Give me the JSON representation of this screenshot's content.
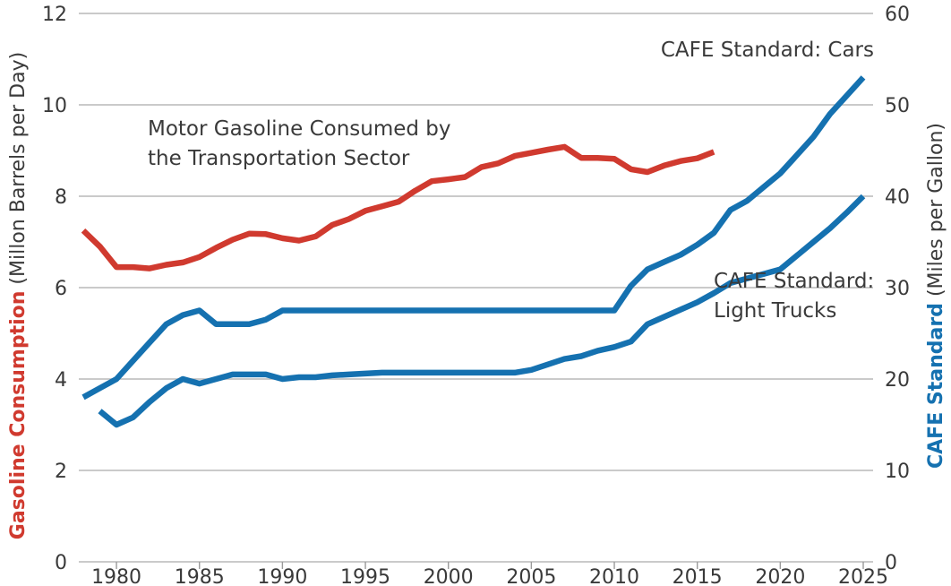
{
  "colors": {
    "gasoline": "#d03a2f",
    "cafe": "#1571b0",
    "text": "#3a3a3a",
    "grid": "#b9b9b9"
  },
  "y_axis_left": {
    "title_bold": "Gasoline Consumption",
    "title_rest": " (Millon Barrels per Day)",
    "ticks": [
      "0",
      "2",
      "4",
      "6",
      "8",
      "10",
      "12"
    ]
  },
  "y_axis_right": {
    "title_bold": "CAFE Standard",
    "title_rest": " (Miles per Gallon)",
    "ticks": [
      "0",
      "10",
      "20",
      "30",
      "40",
      "50",
      "60"
    ]
  },
  "x_axis": {
    "ticks": [
      "1980",
      "1985",
      "1990",
      "1995",
      "2000",
      "2005",
      "2010",
      "2015",
      "2020",
      "2025"
    ]
  },
  "annotations": {
    "gasoline_line1": "Motor Gasoline Consumed by",
    "gasoline_line2": "the Transportation Sector",
    "cars": "CAFE Standard: Cars",
    "trucks_line1": "CAFE Standard:",
    "trucks_line2": "Light Trucks"
  },
  "chart_data": {
    "type": "line",
    "x_range": [
      1978,
      2025
    ],
    "ylim_left": [
      0,
      12
    ],
    "ylim_right": [
      0,
      60
    ],
    "grid": true,
    "series": [
      {
        "name": "Motor Gasoline Consumed by the Transportation Sector",
        "axis": "left",
        "color": "#d03a2f",
        "x": [
          1978,
          1979,
          1980,
          1981,
          1982,
          1983,
          1984,
          1985,
          1986,
          1987,
          1988,
          1989,
          1990,
          1991,
          1992,
          1993,
          1994,
          1995,
          1996,
          1997,
          1998,
          1999,
          2000,
          2001,
          2002,
          2003,
          2004,
          2005,
          2006,
          2007,
          2008,
          2009,
          2010,
          2011,
          2012,
          2013,
          2014,
          2015,
          2016
        ],
        "y": [
          7.25,
          6.9,
          6.45,
          6.45,
          6.42,
          6.5,
          6.55,
          6.67,
          6.87,
          7.05,
          7.18,
          7.17,
          7.08,
          7.03,
          7.12,
          7.37,
          7.5,
          7.68,
          7.78,
          7.88,
          8.12,
          8.33,
          8.37,
          8.42,
          8.64,
          8.72,
          8.88,
          8.95,
          9.02,
          9.08,
          8.84,
          8.84,
          8.82,
          8.59,
          8.53,
          8.67,
          8.77,
          8.83,
          8.97
        ]
      },
      {
        "name": "CAFE Standard: Cars",
        "axis": "right",
        "color": "#1571b0",
        "x": [
          1978,
          1979,
          1980,
          1981,
          1982,
          1983,
          1984,
          1985,
          1986,
          1987,
          1988,
          1989,
          1990,
          2010,
          2011,
          2012,
          2013,
          2014,
          2015,
          2016,
          2017,
          2018,
          2019,
          2020,
          2021,
          2022,
          2023,
          2024,
          2025
        ],
        "y": [
          18,
          19,
          20,
          22,
          24,
          26,
          27,
          27.5,
          26,
          26,
          26,
          26.5,
          27.5,
          27.5,
          30.2,
          32,
          32.8,
          33.6,
          34.7,
          36,
          38.5,
          39.5,
          41,
          42.5,
          44.5,
          46.5,
          49,
          51,
          53
        ]
      },
      {
        "name": "CAFE Standard: Light Trucks",
        "axis": "right",
        "color": "#1571b0",
        "x": [
          1979,
          1980,
          1981,
          1982,
          1983,
          1984,
          1985,
          1986,
          1987,
          1988,
          1989,
          1990,
          1991,
          1992,
          1993,
          1994,
          1995,
          1996,
          1997,
          1998,
          1999,
          2000,
          2001,
          2002,
          2003,
          2004,
          2005,
          2006,
          2007,
          2008,
          2009,
          2010,
          2011,
          2012,
          2013,
          2014,
          2015,
          2016,
          2017,
          2018,
          2019,
          2020,
          2021,
          2022,
          2023,
          2024,
          2025
        ],
        "y": [
          16.5,
          15,
          15.8,
          17.5,
          19,
          20,
          19.5,
          20,
          20.5,
          20.5,
          20.5,
          20,
          20.2,
          20.2,
          20.4,
          20.5,
          20.6,
          20.7,
          20.7,
          20.7,
          20.7,
          20.7,
          20.7,
          20.7,
          20.7,
          20.7,
          21,
          21.6,
          22.2,
          22.5,
          23.1,
          23.5,
          24.1,
          26,
          26.8,
          27.6,
          28.4,
          29.4,
          30.5,
          31,
          31.5,
          32,
          33.5,
          35,
          36.5,
          38.2,
          40
        ]
      }
    ]
  }
}
